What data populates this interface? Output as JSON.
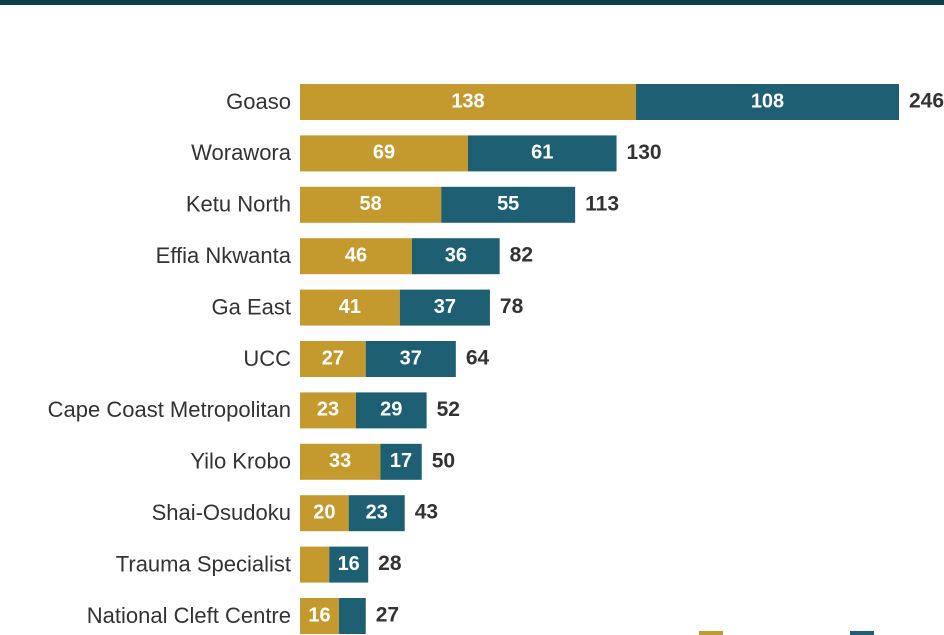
{
  "chart_data": {
    "type": "stacked_bar_horizontal",
    "categories": [
      "Goaso",
      "Worawora",
      "Ketu North",
      "Effia Nkwanta",
      "Ga East",
      "UCC",
      "Cape Coast Metropolitan",
      "Yilo Krobo",
      "Shai-Osudoku",
      "Trauma Specialist",
      "National Cleft Centre"
    ],
    "series": [
      {
        "color": "#c49a2f",
        "values": [
          138,
          69,
          58,
          46,
          41,
          27,
          23,
          33,
          20,
          12,
          16
        ]
      },
      {
        "color": "#1f5f73",
        "values": [
          108,
          61,
          55,
          36,
          37,
          37,
          29,
          17,
          23,
          16,
          11
        ]
      }
    ],
    "totals": [
      246,
      130,
      113,
      82,
      78,
      64,
      52,
      50,
      43,
      28,
      27
    ],
    "xlim": [
      0,
      246
    ]
  }
}
